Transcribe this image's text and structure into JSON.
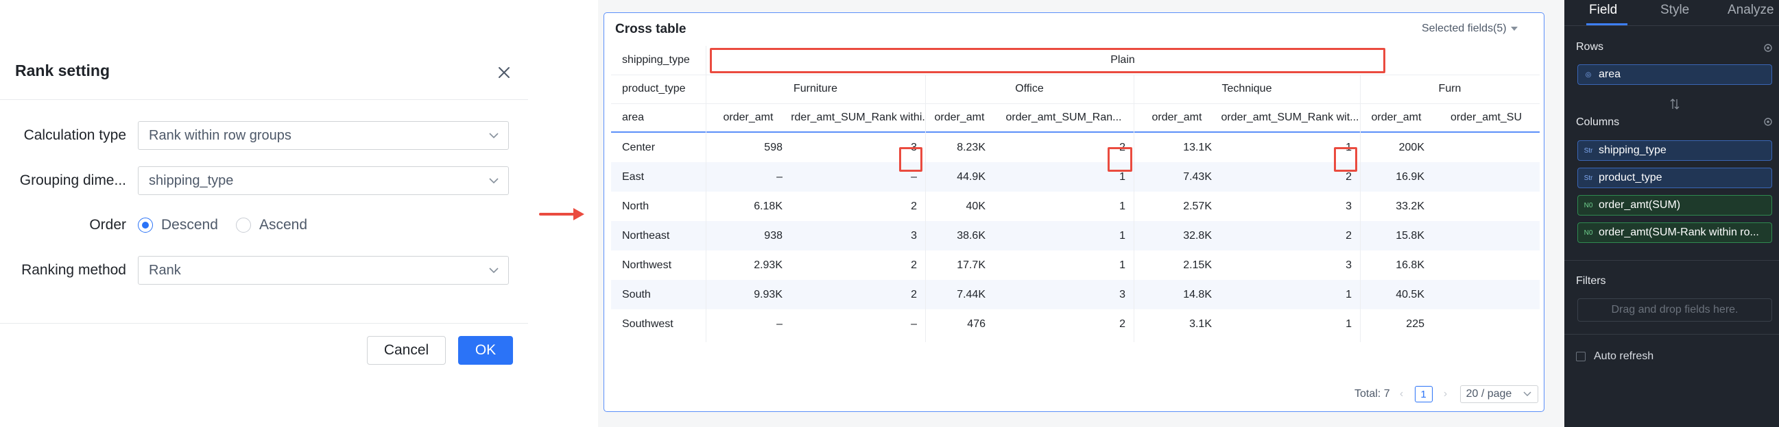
{
  "dialog": {
    "title": "Rank setting",
    "calc_label": "Calculation type",
    "calc_value": "Rank within row groups",
    "group_label": "Grouping dime...",
    "group_value": "shipping_type",
    "order_label": "Order",
    "order_options": [
      "Descend",
      "Ascend"
    ],
    "order_selected": "Descend",
    "method_label": "Ranking method",
    "method_value": "Rank",
    "cancel": "Cancel",
    "ok": "OK"
  },
  "table": {
    "title": "Cross table",
    "selected_fields": "Selected fields(5)",
    "row_header_labels": [
      "shipping_type",
      "product_type",
      "area"
    ],
    "shipping_type": "Plain",
    "product_types": [
      "Furniture",
      "Office",
      "Technique",
      "Furn"
    ],
    "measure_headers": [
      "order_amt",
      "order_amt_SUM_Rank withi...",
      "order_amt",
      "order_amt_SUM_Ran...",
      "order_amt",
      "order_amt_SUM_Rank wit...",
      "order_amt",
      "order_amt_SU"
    ],
    "rows": [
      {
        "area": "Center",
        "cells": [
          "598",
          "3",
          "8.23K",
          "2",
          "13.1K",
          "1",
          "200K",
          ""
        ]
      },
      {
        "area": "East",
        "cells": [
          "–",
          "–",
          "44.9K",
          "1",
          "7.43K",
          "2",
          "16.9K",
          ""
        ]
      },
      {
        "area": "North",
        "cells": [
          "6.18K",
          "2",
          "40K",
          "1",
          "2.57K",
          "3",
          "33.2K",
          ""
        ]
      },
      {
        "area": "Northeast",
        "cells": [
          "938",
          "3",
          "38.6K",
          "1",
          "32.8K",
          "2",
          "15.8K",
          ""
        ]
      },
      {
        "area": "Northwest",
        "cells": [
          "2.93K",
          "2",
          "17.7K",
          "1",
          "2.15K",
          "3",
          "16.8K",
          ""
        ]
      },
      {
        "area": "South",
        "cells": [
          "9.93K",
          "2",
          "7.44K",
          "3",
          "14.8K",
          "1",
          "40.5K",
          ""
        ]
      },
      {
        "area": "Southwest",
        "cells": [
          "–",
          "–",
          "476",
          "2",
          "3.1K",
          "1",
          "225",
          ""
        ]
      }
    ],
    "pager": {
      "total": "Total: 7",
      "page": "1",
      "page_size": "20 / page"
    }
  },
  "panel": {
    "tabs": [
      "Field",
      "Style",
      "Analyze"
    ],
    "active_tab": "Field",
    "rows_label": "Rows",
    "rows_fields": [
      {
        "tag": "◎",
        "name": "area"
      }
    ],
    "columns_label": "Columns",
    "columns_fields": [
      {
        "tag": "Str",
        "name": "shipping_type",
        "kind": "dimension"
      },
      {
        "tag": "Str",
        "name": "product_type",
        "kind": "dimension"
      },
      {
        "tag": "N0",
        "name": "order_amt(SUM)",
        "kind": "measure"
      },
      {
        "tag": "N0",
        "name": "order_amt(SUM-Rank within ro...",
        "kind": "measure"
      }
    ],
    "filters_label": "Filters",
    "filters_placeholder": "Drag and drop fields here.",
    "auto_refresh": "Auto refresh"
  },
  "colors": {
    "primary": "#2b73f7",
    "highlight_red": "#ea4b3f",
    "panel_bg": "#20252d",
    "row_band": "#f4f7fd"
  }
}
